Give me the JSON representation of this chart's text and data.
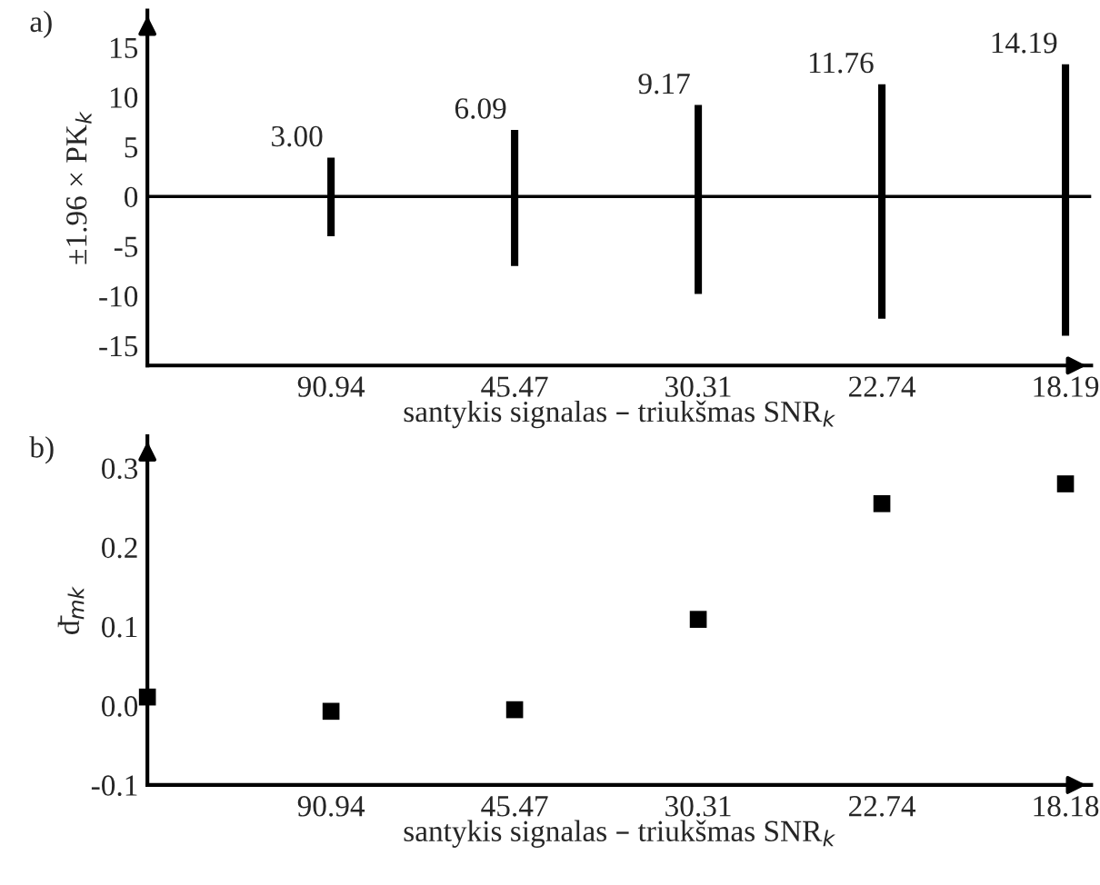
{
  "chart_data": [
    {
      "type": "bar",
      "categories": [
        null,
        "90.94",
        "45.47",
        "30.31",
        "22.74",
        "18.19"
      ],
      "values": [
        null,
        7.9,
        13.7,
        19.0,
        23.6,
        27.3
      ],
      "base": [
        null,
        -4.0,
        -7.0,
        -9.8,
        -12.3,
        -14.0
      ],
      "color": "#000000",
      "ylim": [
        -17,
        18.7
      ],
      "yticks": [
        -15,
        -10,
        -5,
        0,
        5,
        10,
        15
      ],
      "ylabel": "±1.96 × PK$_{k}$",
      "xlabel": "santykis signalas – triukšmas SNR$_{k}$",
      "ref_lines": [
        {
          "axis": "y",
          "value": 0,
          "color": "#000000"
        }
      ],
      "annotations": [
        "a)",
        {
          "text": "3.00",
          "x": "90.94",
          "y": 3.9
        },
        {
          "text": "6.09",
          "x": "45.47",
          "y": 6.7
        },
        {
          "text": "9.17",
          "x": "30.31",
          "y": 9.2
        },
        {
          "text": "11.76",
          "x": "22.74",
          "y": 11.3
        },
        {
          "text": "14.19",
          "x": "18.19",
          "y": 13.3
        }
      ],
      "grid": false,
      "legend": false
    },
    {
      "type": "scatter",
      "categories": [
        null,
        "90.94",
        "45.47",
        "30.31",
        "22.74",
        "18.18"
      ],
      "values": [
        0.011,
        -0.007,
        -0.005,
        0.109,
        0.255,
        0.28
      ],
      "color": "#000000",
      "marker": "square",
      "ylim": [
        -0.1,
        0.34
      ],
      "yticks": [
        {
          "value": -0.1,
          "label": "-0.1"
        },
        {
          "value": 0.0,
          "label": "0.0"
        },
        {
          "value": 0.1,
          "label": "0.1"
        },
        {
          "value": 0.2,
          "label": "0.2"
        },
        {
          "value": 0.3,
          "label": "0.3"
        }
      ],
      "ylabel": "d̄$_{mk}$",
      "xlabel": "santykis signalas – triukšmas SNR$_{k}$",
      "annotations": [
        "b)"
      ],
      "grid": false,
      "legend": false
    }
  ]
}
